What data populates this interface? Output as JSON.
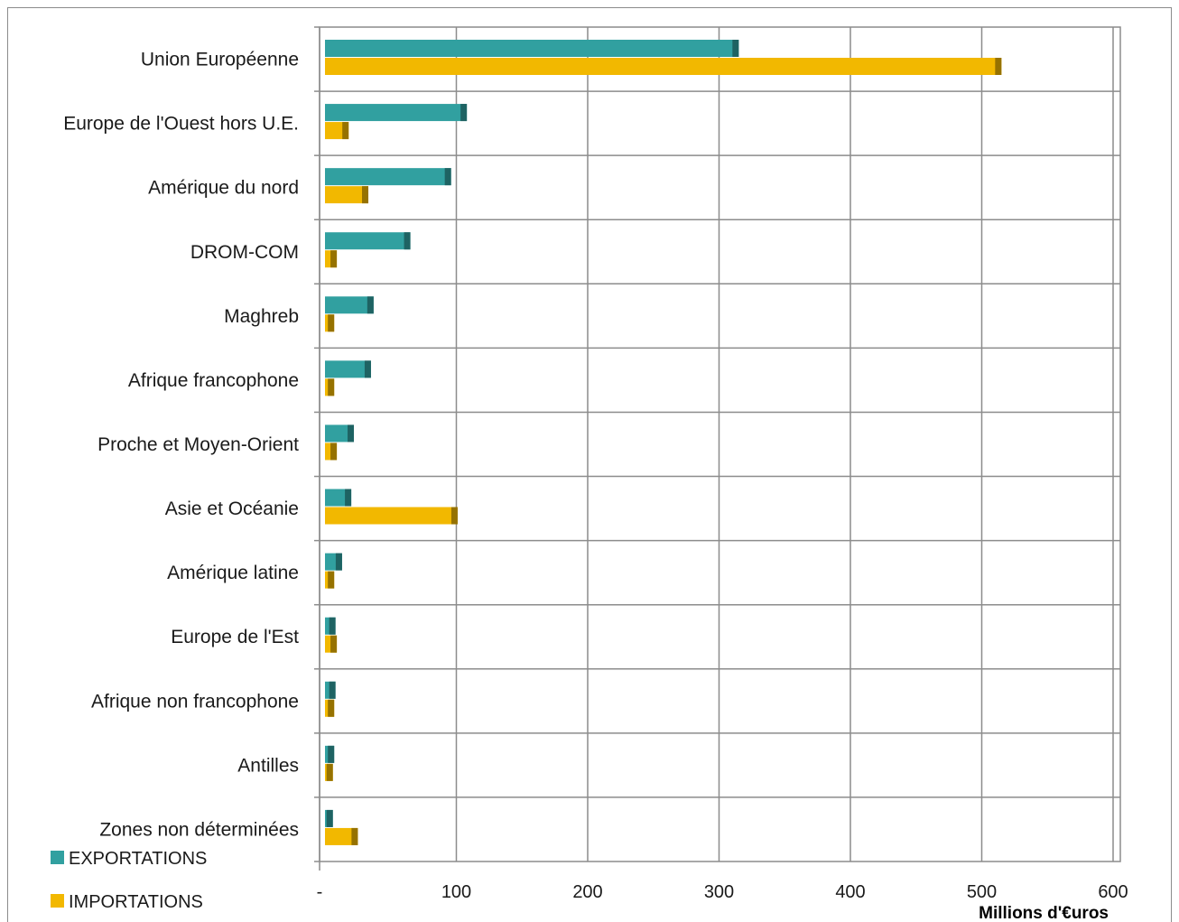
{
  "chart_data": {
    "type": "bar",
    "orientation": "horizontal",
    "categories": [
      "Union Européenne",
      "Europe de l'Ouest hors U.E.",
      "Amérique du nord",
      "DROM-COM",
      "Maghreb",
      "Afrique francophone",
      "Proche et Moyen-Orient",
      "Asie et Océanie",
      "Amérique latine",
      "Europe de l'Est",
      "Afrique non francophone",
      "Antilles",
      "Zones non  déterminées"
    ],
    "series": [
      {
        "name": "EXPORTATIONS",
        "color": "#31A0A0",
        "values": [
          315,
          108,
          96,
          65,
          37,
          35,
          22,
          20,
          13,
          8,
          8,
          7,
          6
        ]
      },
      {
        "name": "IMPORTATIONS",
        "color": "#F2B800",
        "values": [
          515,
          18,
          33,
          9,
          7,
          7,
          9,
          101,
          7,
          9,
          7,
          6,
          25
        ]
      }
    ],
    "xlim": [
      0,
      600
    ],
    "xticks": [
      "-",
      "100",
      "200",
      "300",
      "400",
      "500",
      "600"
    ],
    "xlabel": "Millions d'€uros",
    "ylabel": "",
    "title": "",
    "grid": true,
    "legend": "bottom-left"
  }
}
